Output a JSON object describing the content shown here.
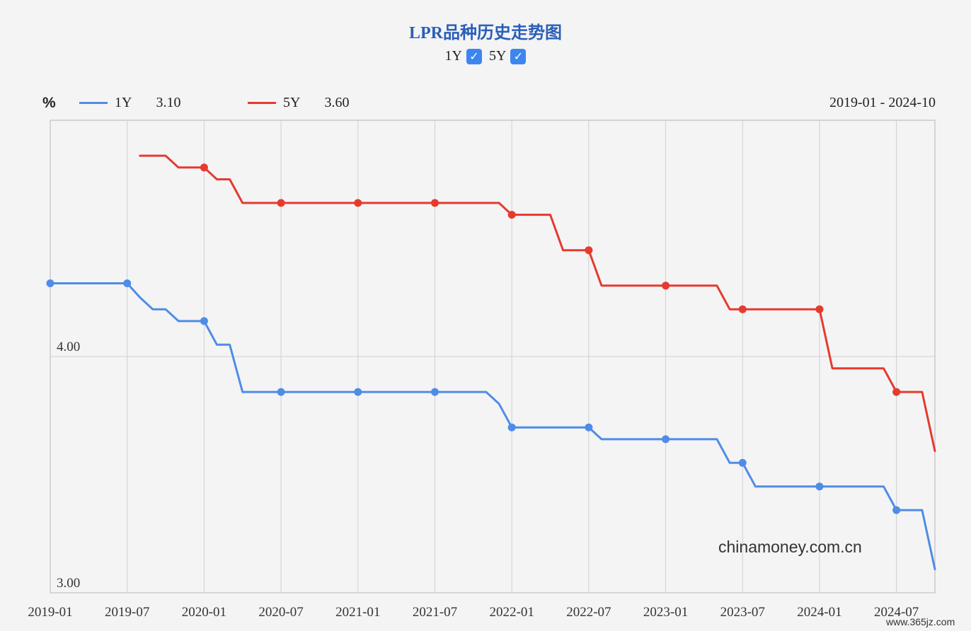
{
  "title": "LPR品种历史走势图",
  "toggles": [
    {
      "label": "1Y",
      "checked": true
    },
    {
      "label": "5Y",
      "checked": true
    }
  ],
  "legend": {
    "unit": "%",
    "items": [
      {
        "name": "1Y",
        "value": "3.10",
        "color": "#4f8ce6"
      },
      {
        "name": "5Y",
        "value": "3.60",
        "color": "#e63a2e"
      }
    ],
    "range": "2019-01 - 2024-10"
  },
  "watermark": "chinamoney.com.cn",
  "corner_watermark": "www.365jz.com",
  "chart_data": {
    "type": "line",
    "x_start": "2019-01",
    "x_end": "2024-10",
    "xticks": [
      "2019-01",
      "2019-07",
      "2020-01",
      "2020-07",
      "2021-01",
      "2021-07",
      "2022-01",
      "2022-07",
      "2023-01",
      "2023-07",
      "2024-01",
      "2024-07"
    ],
    "yticks": [
      4.0,
      3.0
    ],
    "ytick_labels": [
      "4.00",
      "3.00"
    ],
    "ylim": [
      3.0,
      5.0
    ],
    "grid": true,
    "series": [
      {
        "name": "1Y",
        "color": "#4f8ce6",
        "points": [
          [
            "2019-01",
            4.31
          ],
          [
            "2019-07",
            4.31
          ],
          [
            "2019-08",
            4.25
          ],
          [
            "2019-09",
            4.2
          ],
          [
            "2019-10",
            4.2
          ],
          [
            "2019-11",
            4.15
          ],
          [
            "2020-01",
            4.15
          ],
          [
            "2020-02",
            4.05
          ],
          [
            "2020-03",
            4.05
          ],
          [
            "2020-04",
            3.85
          ],
          [
            "2020-07",
            3.85
          ],
          [
            "2021-01",
            3.85
          ],
          [
            "2021-07",
            3.85
          ],
          [
            "2021-11",
            3.85
          ],
          [
            "2021-12",
            3.8
          ],
          [
            "2022-01",
            3.7
          ],
          [
            "2022-07",
            3.7
          ],
          [
            "2022-08",
            3.65
          ],
          [
            "2023-01",
            3.65
          ],
          [
            "2023-05",
            3.65
          ],
          [
            "2023-06",
            3.55
          ],
          [
            "2023-07",
            3.55
          ],
          [
            "2023-08",
            3.45
          ],
          [
            "2024-01",
            3.45
          ],
          [
            "2024-06",
            3.45
          ],
          [
            "2024-07",
            3.35
          ],
          [
            "2024-09",
            3.35
          ],
          [
            "2024-10",
            3.1
          ]
        ],
        "markers": [
          "2019-01",
          "2019-07",
          "2020-01",
          "2020-07",
          "2021-01",
          "2021-07",
          "2022-01",
          "2022-07",
          "2023-01",
          "2023-07",
          "2024-01",
          "2024-07"
        ]
      },
      {
        "name": "5Y",
        "color": "#e63a2e",
        "points": [
          [
            "2019-08",
            4.85
          ],
          [
            "2019-10",
            4.85
          ],
          [
            "2019-11",
            4.8
          ],
          [
            "2020-01",
            4.8
          ],
          [
            "2020-02",
            4.75
          ],
          [
            "2020-03",
            4.75
          ],
          [
            "2020-04",
            4.65
          ],
          [
            "2020-07",
            4.65
          ],
          [
            "2021-01",
            4.65
          ],
          [
            "2021-07",
            4.65
          ],
          [
            "2021-12",
            4.65
          ],
          [
            "2022-01",
            4.6
          ],
          [
            "2022-04",
            4.6
          ],
          [
            "2022-05",
            4.45
          ],
          [
            "2022-07",
            4.45
          ],
          [
            "2022-08",
            4.3
          ],
          [
            "2023-01",
            4.3
          ],
          [
            "2023-05",
            4.3
          ],
          [
            "2023-06",
            4.2
          ],
          [
            "2023-07",
            4.2
          ],
          [
            "2024-01",
            4.2
          ],
          [
            "2024-02",
            3.95
          ],
          [
            "2024-06",
            3.95
          ],
          [
            "2024-07",
            3.85
          ],
          [
            "2024-09",
            3.85
          ],
          [
            "2024-10",
            3.6
          ]
        ],
        "markers": [
          "2020-01",
          "2020-07",
          "2021-01",
          "2021-07",
          "2022-01",
          "2022-07",
          "2023-01",
          "2023-07",
          "2024-01",
          "2024-07"
        ]
      }
    ]
  }
}
